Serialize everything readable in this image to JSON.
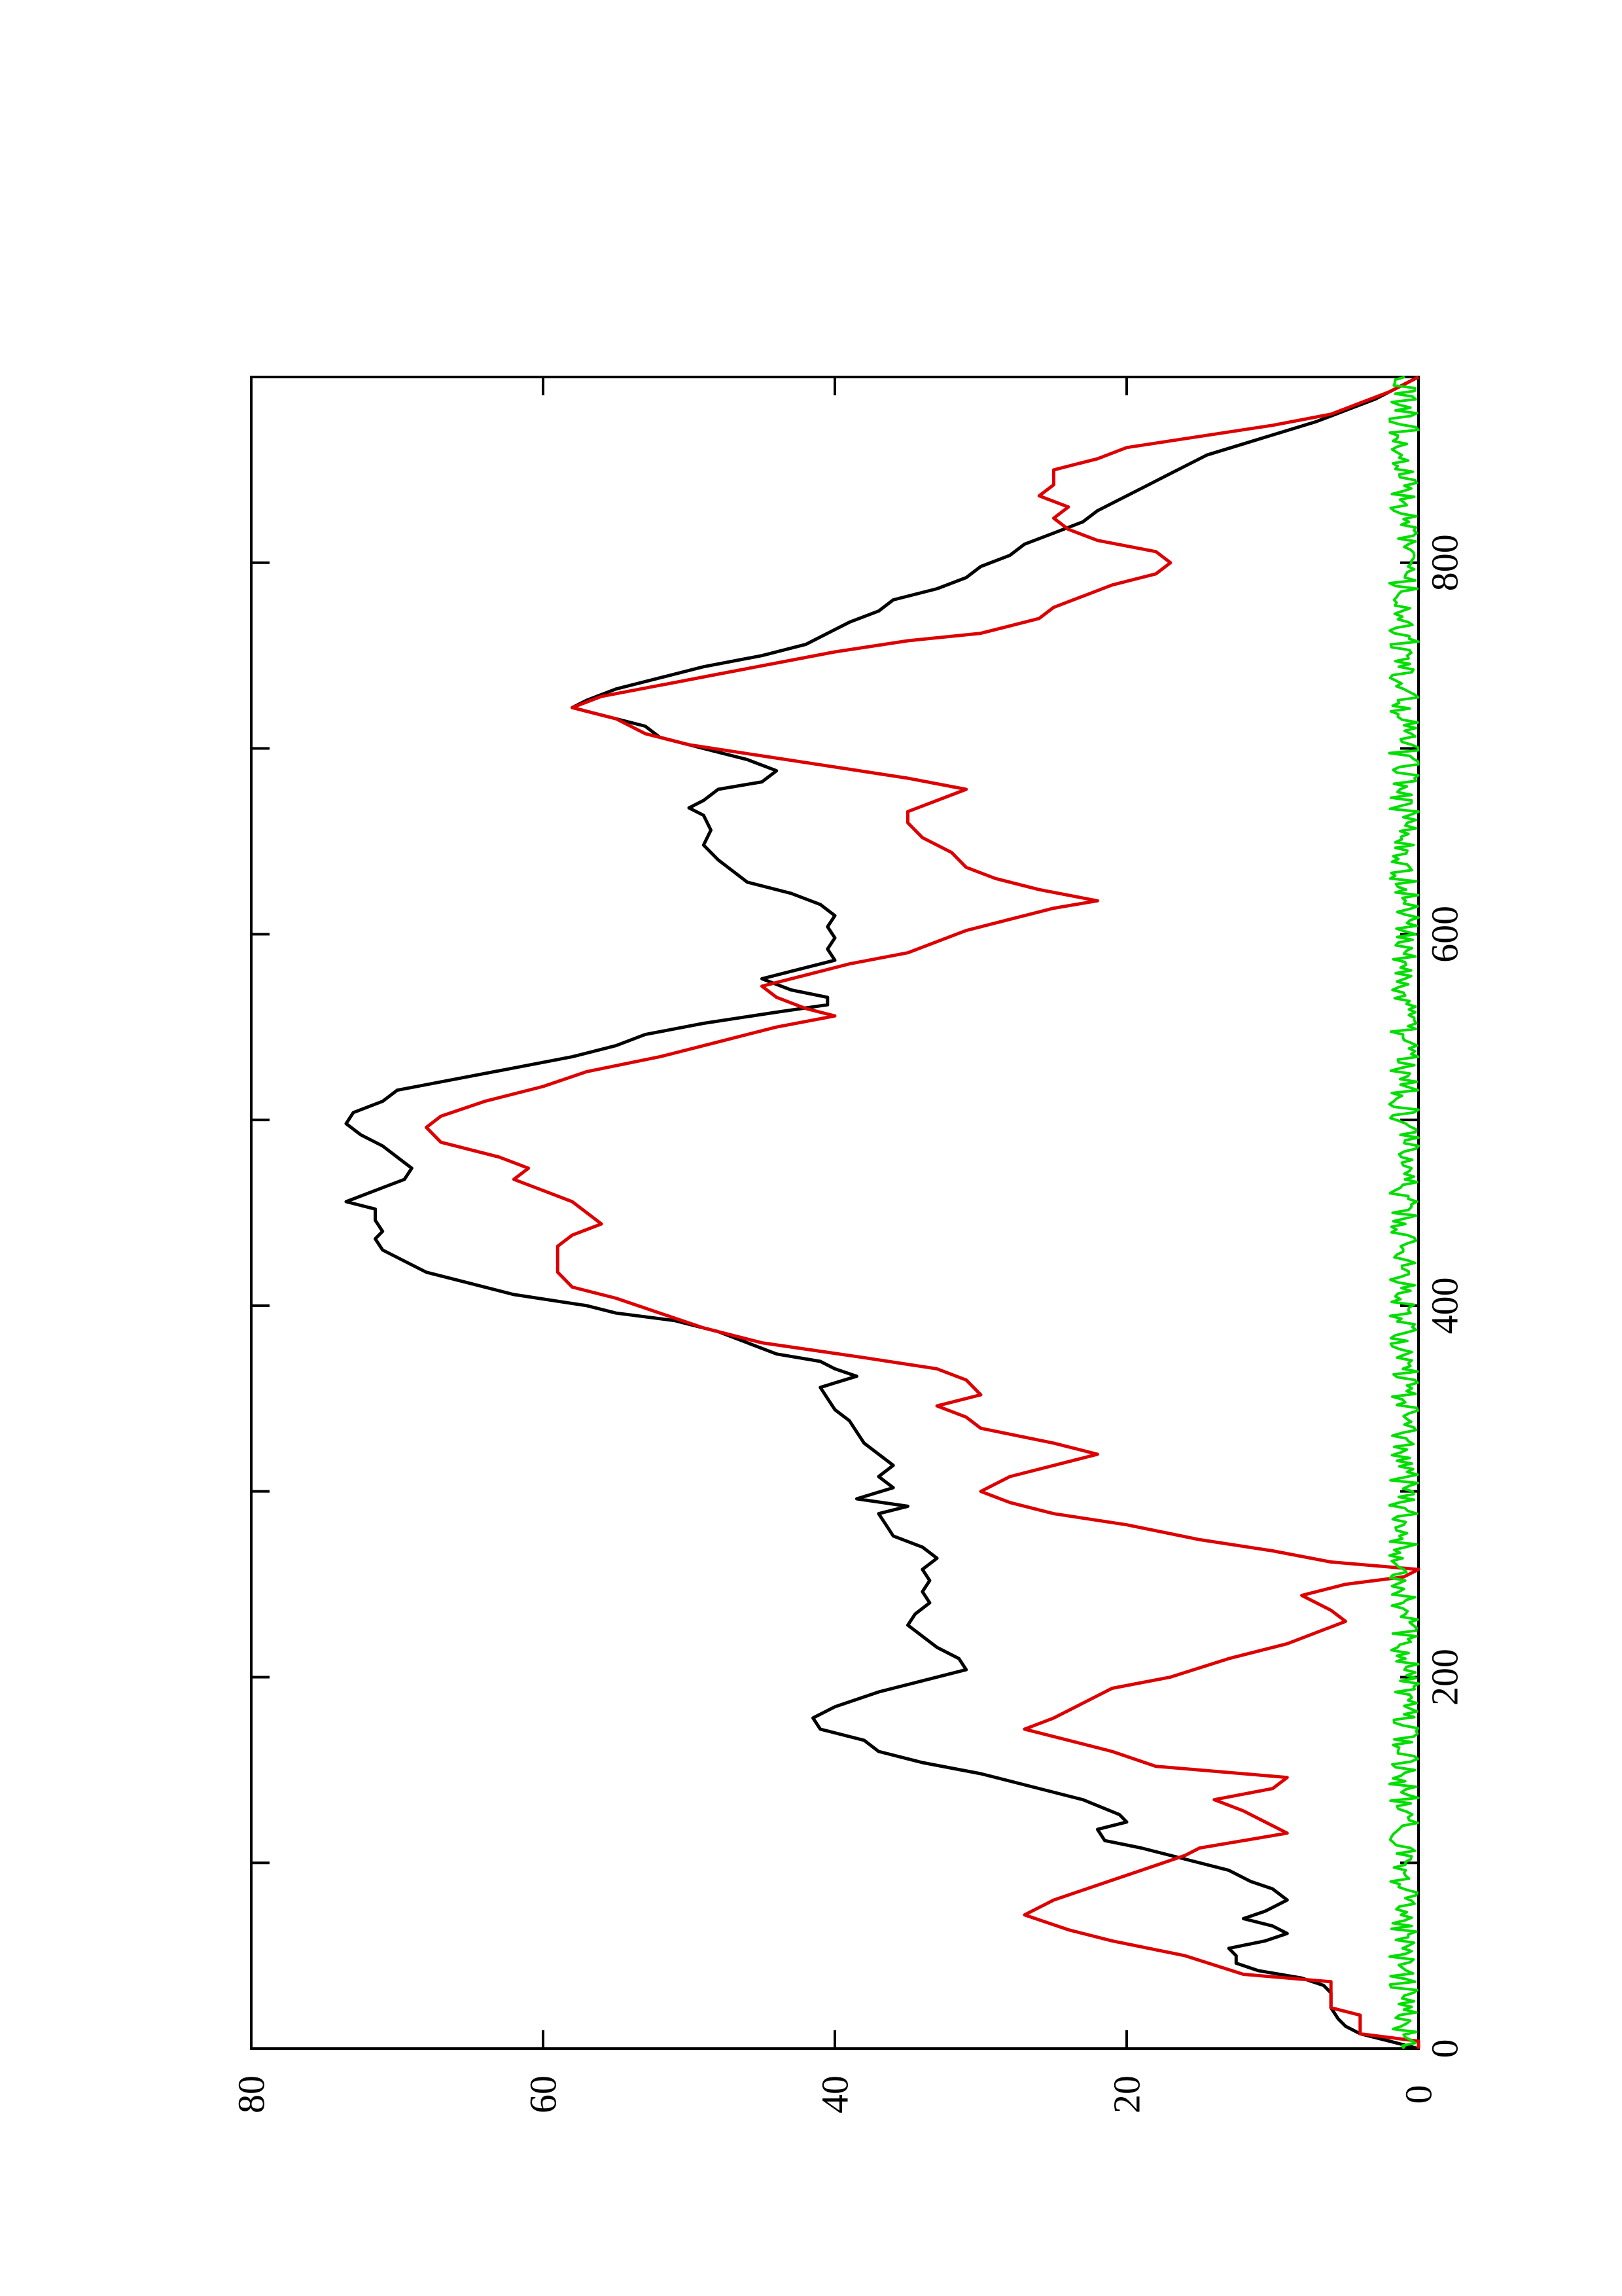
{
  "chart_data": {
    "type": "line",
    "orientation": "rotated 90 degrees counter-clockwise (page in landscape on a portrait sheet)",
    "title": "",
    "xlabel": "",
    "ylabel": "",
    "xlim": [
      0,
      900
    ],
    "ylim": [
      0,
      80
    ],
    "x_ticks": [
      0,
      200,
      400,
      600,
      800
    ],
    "x_ticks_minor": [
      100,
      300,
      500,
      700
    ],
    "y_ticks": [
      0,
      20,
      40,
      60,
      80
    ],
    "grid": false,
    "legend": "none",
    "series": [
      {
        "color": "#000000",
        "style": "smooth line",
        "points": [
          [
            0,
            0
          ],
          [
            4,
            2
          ],
          [
            8,
            4
          ],
          [
            12,
            5
          ],
          [
            16,
            5.5
          ],
          [
            22,
            6
          ],
          [
            30,
            6
          ],
          [
            34,
            6.5
          ],
          [
            38,
            8
          ],
          [
            42,
            11
          ],
          [
            46,
            12.5
          ],
          [
            50,
            12.5
          ],
          [
            54,
            13
          ],
          [
            58,
            10.5
          ],
          [
            62,
            9
          ],
          [
            66,
            10
          ],
          [
            70,
            12
          ],
          [
            74,
            10.5
          ],
          [
            80,
            9
          ],
          [
            86,
            10
          ],
          [
            90,
            11.5
          ],
          [
            96,
            13
          ],
          [
            102,
            16
          ],
          [
            108,
            19
          ],
          [
            112,
            21.5
          ],
          [
            118,
            22
          ],
          [
            122,
            20
          ],
          [
            126,
            20.5
          ],
          [
            134,
            23
          ],
          [
            142,
            27
          ],
          [
            148,
            30
          ],
          [
            154,
            34
          ],
          [
            160,
            37
          ],
          [
            166,
            38
          ],
          [
            172,
            41
          ],
          [
            178,
            41.5
          ],
          [
            184,
            40
          ],
          [
            192,
            37
          ],
          [
            198,
            34
          ],
          [
            204,
            31
          ],
          [
            210,
            31.5
          ],
          [
            216,
            33
          ],
          [
            222,
            34
          ],
          [
            228,
            35
          ],
          [
            234,
            34.5
          ],
          [
            240,
            33.5
          ],
          [
            246,
            34
          ],
          [
            252,
            33.5
          ],
          [
            258,
            34
          ],
          [
            264,
            33
          ],
          [
            270,
            34
          ],
          [
            276,
            36
          ],
          [
            282,
            36.5
          ],
          [
            288,
            37
          ],
          [
            292,
            35
          ],
          [
            296,
            38.5
          ],
          [
            302,
            36
          ],
          [
            308,
            37
          ],
          [
            314,
            36
          ],
          [
            320,
            37
          ],
          [
            326,
            38
          ],
          [
            332,
            38.5
          ],
          [
            338,
            39
          ],
          [
            344,
            40
          ],
          [
            350,
            40.5
          ],
          [
            356,
            41
          ],
          [
            362,
            38.5
          ],
          [
            366,
            40
          ],
          [
            370,
            41
          ],
          [
            374,
            44
          ],
          [
            380,
            46
          ],
          [
            386,
            48
          ],
          [
            392,
            51
          ],
          [
            396,
            55
          ],
          [
            400,
            57
          ],
          [
            406,
            62
          ],
          [
            412,
            65
          ],
          [
            418,
            68
          ],
          [
            424,
            69.5
          ],
          [
            430,
            71
          ],
          [
            436,
            71.5
          ],
          [
            440,
            71
          ],
          [
            446,
            71.5
          ],
          [
            452,
            71.5
          ],
          [
            456,
            73.5
          ],
          [
            462,
            71.5
          ],
          [
            468,
            69.5
          ],
          [
            474,
            69
          ],
          [
            480,
            70
          ],
          [
            486,
            71
          ],
          [
            492,
            72.5
          ],
          [
            498,
            73.5
          ],
          [
            504,
            73
          ],
          [
            510,
            71
          ],
          [
            516,
            70
          ],
          [
            522,
            66
          ],
          [
            528,
            62
          ],
          [
            534,
            58
          ],
          [
            540,
            55
          ],
          [
            546,
            53
          ],
          [
            552,
            49
          ],
          [
            558,
            44
          ],
          [
            562,
            40.5
          ],
          [
            566,
            40.5
          ],
          [
            570,
            43
          ],
          [
            576,
            45
          ],
          [
            580,
            43
          ],
          [
            586,
            40
          ],
          [
            592,
            40.5
          ],
          [
            598,
            40
          ],
          [
            604,
            40.5
          ],
          [
            610,
            40
          ],
          [
            616,
            41
          ],
          [
            622,
            43
          ],
          [
            628,
            46
          ],
          [
            634,
            47
          ],
          [
            640,
            48
          ],
          [
            648,
            49
          ],
          [
            656,
            48.5
          ],
          [
            664,
            49
          ],
          [
            668,
            50
          ],
          [
            672,
            49
          ],
          [
            678,
            48
          ],
          [
            682,
            45
          ],
          [
            688,
            44
          ],
          [
            694,
            46
          ],
          [
            700,
            49
          ],
          [
            706,
            52
          ],
          [
            712,
            53
          ],
          [
            718,
            56
          ],
          [
            722,
            58
          ],
          [
            726,
            57
          ],
          [
            732,
            55
          ],
          [
            738,
            52
          ],
          [
            744,
            49
          ],
          [
            750,
            45
          ],
          [
            756,
            42
          ],
          [
            762,
            40.5
          ],
          [
            768,
            39
          ],
          [
            774,
            37
          ],
          [
            780,
            36
          ],
          [
            786,
            33
          ],
          [
            792,
            31
          ],
          [
            798,
            30
          ],
          [
            804,
            28
          ],
          [
            810,
            27
          ],
          [
            816,
            25
          ],
          [
            822,
            23
          ],
          [
            828,
            22
          ],
          [
            834,
            20.5
          ],
          [
            840,
            19
          ],
          [
            846,
            17.5
          ],
          [
            852,
            16
          ],
          [
            858,
            14.5
          ],
          [
            864,
            12
          ],
          [
            870,
            9.5
          ],
          [
            876,
            7
          ],
          [
            882,
            5
          ],
          [
            888,
            3
          ],
          [
            894,
            1.5
          ],
          [
            900,
            0
          ]
        ]
      },
      {
        "color": "#dd0000",
        "style": "stepped line",
        "points": [
          [
            0,
            0
          ],
          [
            4,
            0
          ],
          [
            8,
            4
          ],
          [
            18,
            4
          ],
          [
            22,
            6
          ],
          [
            36,
            6
          ],
          [
            40,
            12
          ],
          [
            50,
            16
          ],
          [
            58,
            21
          ],
          [
            64,
            24
          ],
          [
            72,
            27
          ],
          [
            80,
            25
          ],
          [
            88,
            22
          ],
          [
            96,
            19
          ],
          [
            104,
            16
          ],
          [
            108,
            15
          ],
          [
            112,
            12
          ],
          [
            116,
            9
          ],
          [
            120,
            10
          ],
          [
            128,
            12
          ],
          [
            134,
            14
          ],
          [
            140,
            10
          ],
          [
            146,
            9
          ],
          [
            152,
            18
          ],
          [
            160,
            21
          ],
          [
            166,
            24
          ],
          [
            172,
            27
          ],
          [
            178,
            25
          ],
          [
            186,
            23
          ],
          [
            194,
            21
          ],
          [
            200,
            17
          ],
          [
            210,
            13
          ],
          [
            218,
            9
          ],
          [
            224,
            7
          ],
          [
            230,
            5
          ],
          [
            236,
            6
          ],
          [
            244,
            8
          ],
          [
            250,
            5
          ],
          [
            254,
            1
          ],
          [
            258,
            0
          ],
          [
            262,
            6
          ],
          [
            268,
            10
          ],
          [
            274,
            15
          ],
          [
            282,
            20
          ],
          [
            288,
            25
          ],
          [
            294,
            28
          ],
          [
            300,
            30
          ],
          [
            308,
            28
          ],
          [
            316,
            24
          ],
          [
            320,
            22
          ],
          [
            326,
            25
          ],
          [
            334,
            30
          ],
          [
            340,
            31
          ],
          [
            346,
            33
          ],
          [
            352,
            30
          ],
          [
            360,
            31
          ],
          [
            366,
            33
          ],
          [
            372,
            38
          ],
          [
            380,
            45
          ],
          [
            388,
            49
          ],
          [
            396,
            52
          ],
          [
            404,
            55
          ],
          [
            410,
            58
          ],
          [
            418,
            59
          ],
          [
            426,
            59
          ],
          [
            432,
            59
          ],
          [
            438,
            58
          ],
          [
            444,
            56
          ],
          [
            450,
            57
          ],
          [
            456,
            58
          ],
          [
            462,
            60
          ],
          [
            468,
            62
          ],
          [
            474,
            61
          ],
          [
            480,
            63
          ],
          [
            488,
            67
          ],
          [
            496,
            68
          ],
          [
            502,
            67
          ],
          [
            510,
            64
          ],
          [
            518,
            60
          ],
          [
            526,
            57
          ],
          [
            534,
            52
          ],
          [
            542,
            48
          ],
          [
            550,
            44
          ],
          [
            556,
            40
          ],
          [
            560,
            42
          ],
          [
            566,
            44
          ],
          [
            572,
            45
          ],
          [
            578,
            42
          ],
          [
            584,
            39
          ],
          [
            590,
            35
          ],
          [
            596,
            33
          ],
          [
            602,
            31
          ],
          [
            608,
            28
          ],
          [
            614,
            25
          ],
          [
            618,
            22
          ],
          [
            624,
            26
          ],
          [
            630,
            29
          ],
          [
            636,
            31
          ],
          [
            644,
            32
          ],
          [
            652,
            34
          ],
          [
            660,
            35
          ],
          [
            666,
            35
          ],
          [
            672,
            33
          ],
          [
            678,
            31
          ],
          [
            684,
            35
          ],
          [
            690,
            40
          ],
          [
            696,
            45
          ],
          [
            702,
            50
          ],
          [
            708,
            53
          ],
          [
            716,
            55
          ],
          [
            722,
            58
          ],
          [
            728,
            56
          ],
          [
            734,
            52
          ],
          [
            740,
            48
          ],
          [
            746,
            44
          ],
          [
            752,
            40
          ],
          [
            758,
            35
          ],
          [
            762,
            30
          ],
          [
            766,
            28
          ],
          [
            770,
            26
          ],
          [
            776,
            25
          ],
          [
            782,
            23
          ],
          [
            788,
            21
          ],
          [
            794,
            18
          ],
          [
            800,
            17
          ],
          [
            806,
            18
          ],
          [
            812,
            22
          ],
          [
            818,
            24
          ],
          [
            824,
            25
          ],
          [
            830,
            24
          ],
          [
            836,
            26
          ],
          [
            842,
            25
          ],
          [
            850,
            25
          ],
          [
            856,
            22
          ],
          [
            862,
            20
          ],
          [
            868,
            15
          ],
          [
            874,
            10
          ],
          [
            880,
            6
          ],
          [
            886,
            4
          ],
          [
            892,
            2
          ],
          [
            896,
            1
          ],
          [
            900,
            0
          ]
        ]
      },
      {
        "color": "#00dd00",
        "style": "noisy line near zero",
        "range": [
          0,
          2
        ],
        "mean": 0.7
      }
    ]
  }
}
